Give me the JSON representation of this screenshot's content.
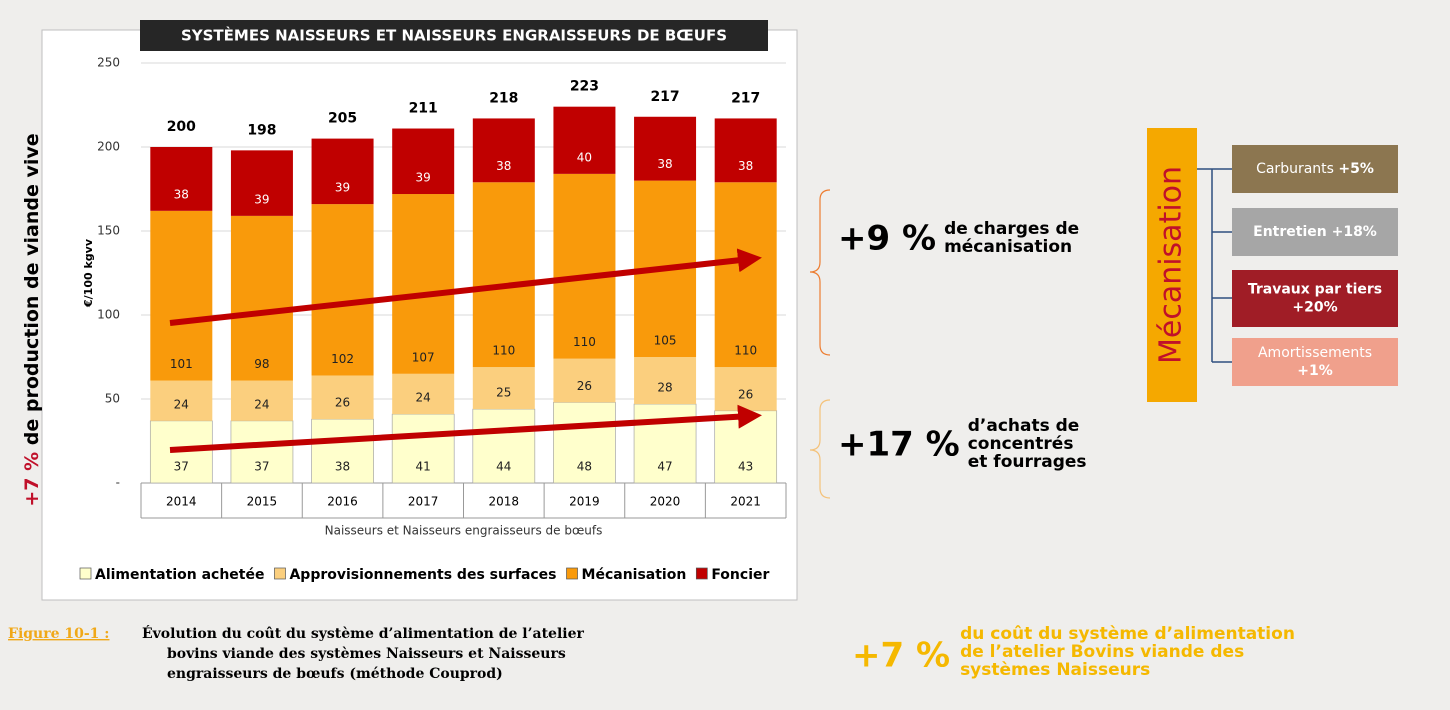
{
  "chart_data": {
    "type": "stacked-bar",
    "title": "SYSTÈMES NAISSEURS ET NAISSEURS ENGRAISSEURS DE BŒUFS",
    "y_label": "€/100 kgvv",
    "x_label": "Naisseurs et Naisseurs engraisseurs de bœufs",
    "categories": [
      "2014",
      "2015",
      "2016",
      "2017",
      "2018",
      "2019",
      "2020",
      "2021"
    ],
    "series": [
      {
        "name": "Alimentation achetée",
        "color": "#ffffcc",
        "values": [
          37,
          37,
          38,
          41,
          44,
          48,
          47,
          43
        ]
      },
      {
        "name": "Approvisionnements des surfaces",
        "color": "#fbcf7e",
        "values": [
          24,
          24,
          26,
          24,
          25,
          26,
          28,
          26
        ]
      },
      {
        "name": "Mécanisation",
        "color": "#f99a0b",
        "values": [
          101,
          98,
          102,
          107,
          110,
          110,
          105,
          110
        ]
      },
      {
        "name": "Foncier",
        "color": "#c00000",
        "values": [
          38,
          39,
          39,
          39,
          38,
          40,
          38,
          38
        ]
      }
    ],
    "totals": [
      200,
      198,
      205,
      211,
      218,
      223,
      217,
      217
    ],
    "ylim": [
      0,
      250
    ],
    "yticks": [
      {
        "value": 0,
        "label": "-"
      },
      50,
      100,
      150,
      200,
      250
    ],
    "grid": true
  },
  "side_label": {
    "change": "+7 %",
    "text": "de production de viande vive"
  },
  "callouts": [
    {
      "change": "+9 %",
      "lines": [
        "de charges de",
        "mécanisation"
      ]
    },
    {
      "change": "+17 %",
      "lines": [
        "d’achats de",
        "concentrés",
        "et fourrages"
      ]
    }
  ],
  "breakdown": {
    "title": "Mécanisation",
    "items": [
      {
        "label": "Carburants",
        "change": "+5%"
      },
      {
        "label": "Entretien",
        "change": "+18%"
      },
      {
        "label": "Travaux par tiers",
        "change": "+20%"
      },
      {
        "label": "Amortissements",
        "change": "+1%"
      }
    ]
  },
  "caption": {
    "label": "Figure 10-1 :",
    "lines": [
      "Évolution du coût du système d’alimentation de l’atelier",
      "bovins viande des systèmes Naisseurs et Naisseurs",
      "engraisseurs de bœufs (méthode Couprod)"
    ]
  },
  "summary": {
    "change": "+7 %",
    "lines": [
      "du coût du système d’alimentation",
      "de l’atelier Bovins viande des",
      "systèmes Naisseurs"
    ]
  }
}
